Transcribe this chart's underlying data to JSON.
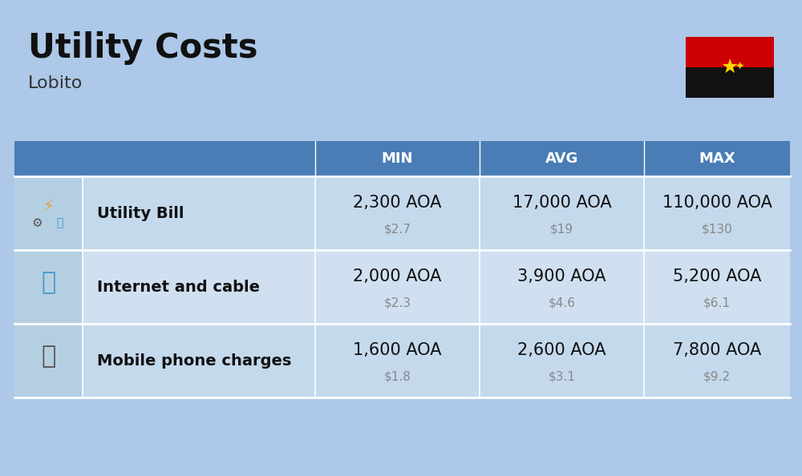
{
  "title": "Utility Costs",
  "subtitle": "Lobito",
  "background_color": "#adc8e8",
  "header_color": "#4a7db5",
  "header_text_color": "#ffffff",
  "col_headers": [
    "MIN",
    "AVG",
    "MAX"
  ],
  "rows": [
    {
      "label": "Utility Bill",
      "min_aoa": "2,300 AOA",
      "min_usd": "$2.7",
      "avg_aoa": "17,000 AOA",
      "avg_usd": "$19",
      "max_aoa": "110,000 AOA",
      "max_usd": "$130"
    },
    {
      "label": "Internet and cable",
      "min_aoa": "2,000 AOA",
      "min_usd": "$2.3",
      "avg_aoa": "3,900 AOA",
      "avg_usd": "$4.6",
      "max_aoa": "5,200 AOA",
      "max_usd": "$6.1"
    },
    {
      "label": "Mobile phone charges",
      "min_aoa": "1,600 AOA",
      "min_usd": "$1.8",
      "avg_aoa": "2,600 AOA",
      "avg_usd": "$3.1",
      "max_aoa": "7,800 AOA",
      "max_usd": "$9.2"
    }
  ],
  "title_fontsize": 30,
  "subtitle_fontsize": 16,
  "header_fontsize": 13,
  "label_fontsize": 14,
  "value_fontsize": 15,
  "usd_fontsize": 11,
  "row_bg_colors": [
    "#c5d9ed",
    "#d0e0f0",
    "#c5d9ed"
  ],
  "icon_col_color": "#b5cfe2",
  "divider_color": "#ffffff",
  "flag_red": "#cc0000",
  "flag_black": "#111111",
  "flag_yellow": "#FFD700"
}
